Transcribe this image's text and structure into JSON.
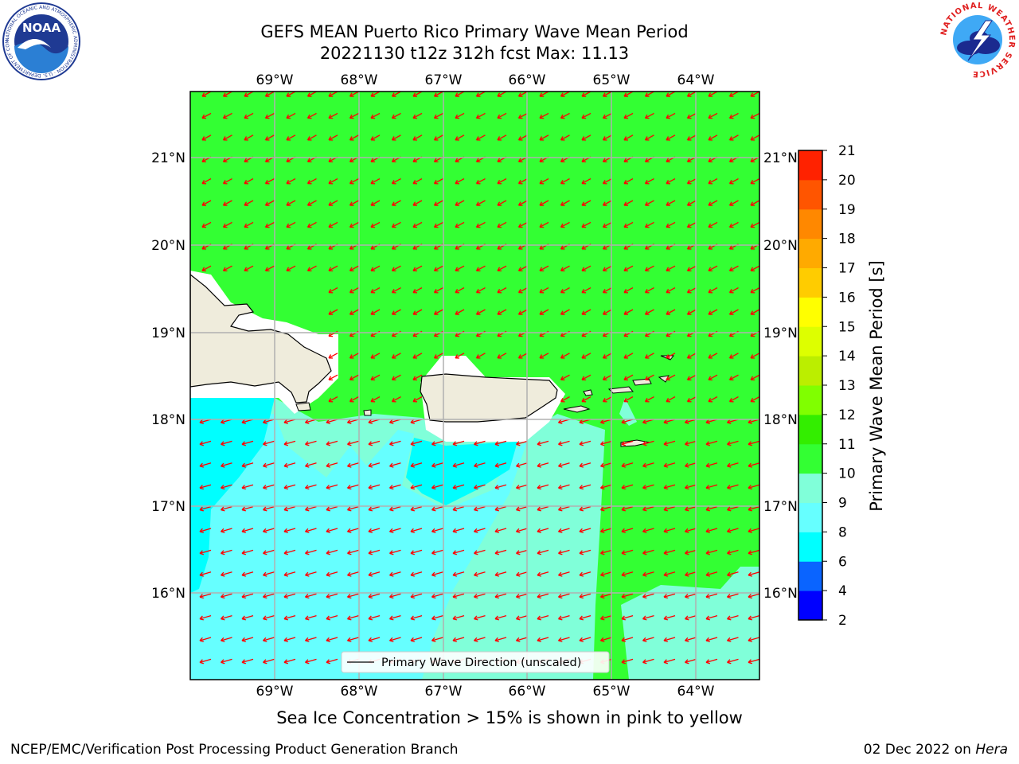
{
  "header": {
    "title_line1": "GEFS MEAN Puerto Rico Primary Wave Mean Period",
    "title_line2": "20221130 t12z 312h fcst   Max: 11.13"
  },
  "logos": {
    "left": "NOAA",
    "left_ring_text": "NATIONAL OCEANIC AND ATMOSPHERIC ADMINISTRATION · U.S. DEPARTMENT OF COMMERCE",
    "right_ring_text": "NATIONAL WEATHER SERVICE"
  },
  "map": {
    "lon_labels": [
      "69°W",
      "68°W",
      "67°W",
      "66°W",
      "65°W",
      "64°W"
    ],
    "lat_labels": [
      "21°N",
      "20°N",
      "19°N",
      "18°N",
      "17°N",
      "16°N"
    ],
    "legend_label": "Primary Wave Direction (unscaled)",
    "arrow_color": "#ff0000",
    "land_color": "#efecdc",
    "ocean_colors": {
      "10-11": "#33ff33",
      "9-10": "#80ffd9",
      "8-9": "#66ffff",
      "6-8": "#00ffff"
    }
  },
  "colorbar": {
    "label": "Primary Wave Mean Period [s]",
    "ticks": [
      "2",
      "4",
      "6",
      "8",
      "9",
      "10",
      "11",
      "12",
      "13",
      "14",
      "15",
      "16",
      "17",
      "18",
      "19",
      "20",
      "21"
    ],
    "colors": [
      "#0000ff",
      "#0a64ff",
      "#00ffff",
      "#66ffff",
      "#80ffd9",
      "#33ff33",
      "#33ee00",
      "#80ff00",
      "#bbee00",
      "#ddff00",
      "#ffff00",
      "#ffcc00",
      "#ffaa00",
      "#ff8800",
      "#ff5500",
      "#ff2200"
    ]
  },
  "notes": {
    "sea_ice": "Sea Ice Concentration > 15% is shown in pink to yellow"
  },
  "footer": {
    "left": "NCEP/EMC/Verification Post Processing Product Generation Branch",
    "date": "02 Dec 2022 on ",
    "machine": "Hera"
  }
}
